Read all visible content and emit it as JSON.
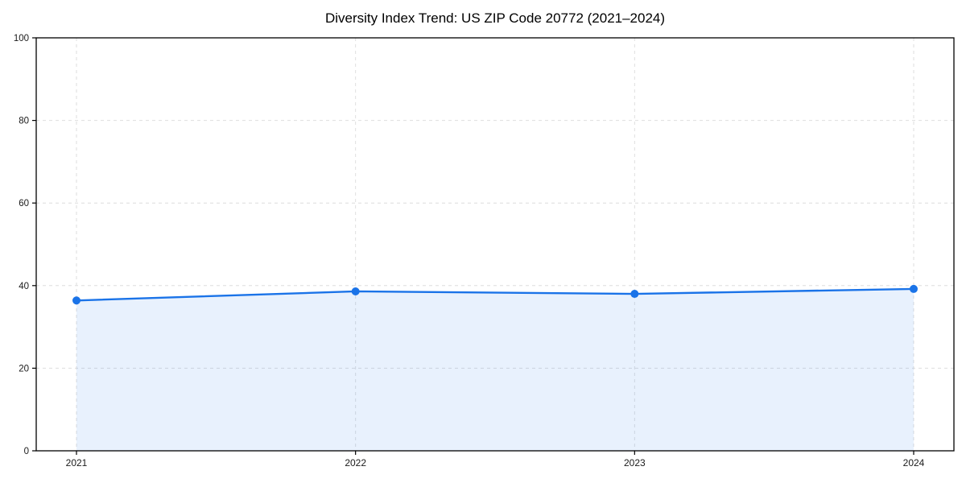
{
  "page": {
    "background": "#ffffff"
  },
  "chart_data": {
    "type": "area",
    "title": "Diversity Index Trend: US ZIP Code 20772 (2021–2024)",
    "categories": [
      "2021",
      "2022",
      "2023",
      "2024"
    ],
    "series": [
      {
        "name": "Diversity Index",
        "values": [
          36.4,
          38.6,
          38.0,
          39.2
        ]
      }
    ],
    "xlabel": "",
    "ylabel": "",
    "ylim": [
      0,
      100
    ],
    "yticks": [
      0,
      20,
      40,
      60,
      80,
      100
    ],
    "grid": true,
    "grid_style": "dashed",
    "legend": "none",
    "line_color": "#1a73e8",
    "marker": "circle",
    "marker_color": "#1a73e8",
    "fill_color": "#1a73e8",
    "fill_opacity": 0.1,
    "grid_color": "#dedede",
    "spine_color": "#000000",
    "tick_label_color": "#1a1a1a",
    "title_color": "#000000"
  }
}
